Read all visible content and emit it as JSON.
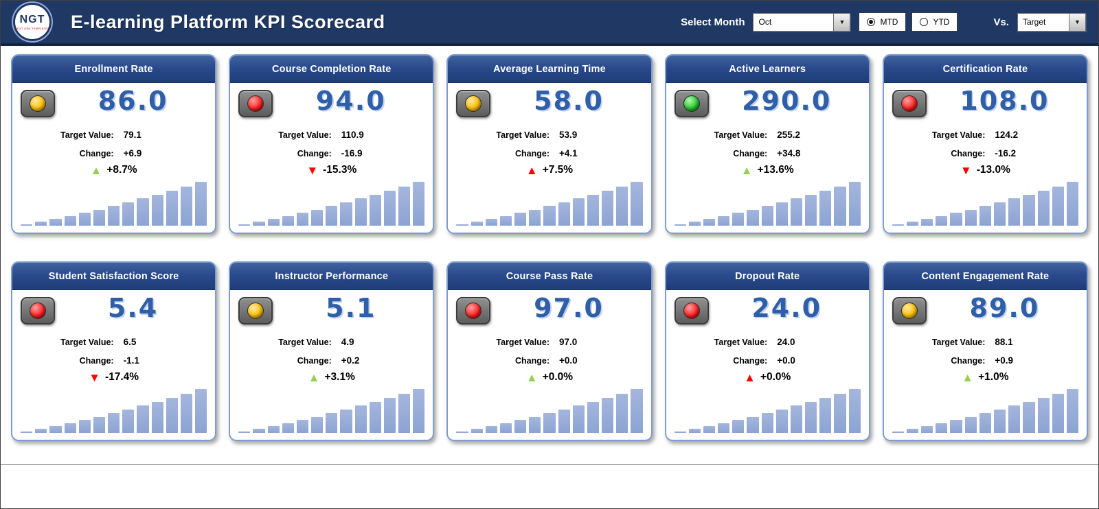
{
  "header": {
    "logo": {
      "text": "NGT",
      "subtext": "NEXT GEN TEMPLATES"
    },
    "title": "E-learning Platform KPI Scorecard",
    "controls": {
      "select_month_label": "Select Month",
      "month_value": "Oct",
      "period_options": [
        {
          "label": "MTD",
          "selected": true
        },
        {
          "label": "YTD",
          "selected": false
        }
      ],
      "vs_label": "Vs.",
      "vs_value": "Target"
    }
  },
  "labels": {
    "target": "Target Value:",
    "change": "Change:"
  },
  "colors": {
    "green": "#92D050",
    "red": "#FF0000",
    "yellow": "#FFC000",
    "value_blue": "#2E5FA8"
  },
  "sparkline": [
    1.5,
    5,
    9,
    13,
    17,
    21,
    26,
    31,
    36,
    41,
    46,
    52,
    58
  ],
  "cards": [
    {
      "title": "Enrollment Rate",
      "light": "yellow",
      "value": "86.0",
      "target": "79.1",
      "change": "+6.9",
      "pct": "+8.7%",
      "trend": "up",
      "trend_color": "green"
    },
    {
      "title": "Course Completion Rate",
      "light": "red",
      "value": "94.0",
      "target": "110.9",
      "change": "-16.9",
      "pct": "-15.3%",
      "trend": "down",
      "trend_color": "red"
    },
    {
      "title": "Average Learning Time",
      "light": "yellow",
      "value": "58.0",
      "target": "53.9",
      "change": "+4.1",
      "pct": "+7.5%",
      "trend": "up",
      "trend_color": "red"
    },
    {
      "title": "Active Learners",
      "light": "green",
      "value": "290.0",
      "target": "255.2",
      "change": "+34.8",
      "pct": "+13.6%",
      "trend": "up",
      "trend_color": "green"
    },
    {
      "title": "Certification Rate",
      "light": "red",
      "value": "108.0",
      "target": "124.2",
      "change": "-16.2",
      "pct": "-13.0%",
      "trend": "down",
      "trend_color": "red"
    },
    {
      "title": "Student Satisfaction Score",
      "light": "red",
      "value": "5.4",
      "target": "6.5",
      "change": "-1.1",
      "pct": "-17.4%",
      "trend": "down",
      "trend_color": "red"
    },
    {
      "title": "Instructor Performance",
      "light": "yellow",
      "value": "5.1",
      "target": "4.9",
      "change": "+0.2",
      "pct": "+3.1%",
      "trend": "up",
      "trend_color": "green"
    },
    {
      "title": "Course Pass Rate",
      "light": "red",
      "value": "97.0",
      "target": "97.0",
      "change": "+0.0",
      "pct": "+0.0%",
      "trend": "up",
      "trend_color": "green"
    },
    {
      "title": "Dropout Rate",
      "light": "red",
      "value": "24.0",
      "target": "24.0",
      "change": "+0.0",
      "pct": "+0.0%",
      "trend": "up",
      "trend_color": "red"
    },
    {
      "title": "Content Engagement Rate",
      "light": "yellow",
      "value": "89.0",
      "target": "88.1",
      "change": "+0.9",
      "pct": "+1.0%",
      "trend": "up",
      "trend_color": "green"
    }
  ]
}
